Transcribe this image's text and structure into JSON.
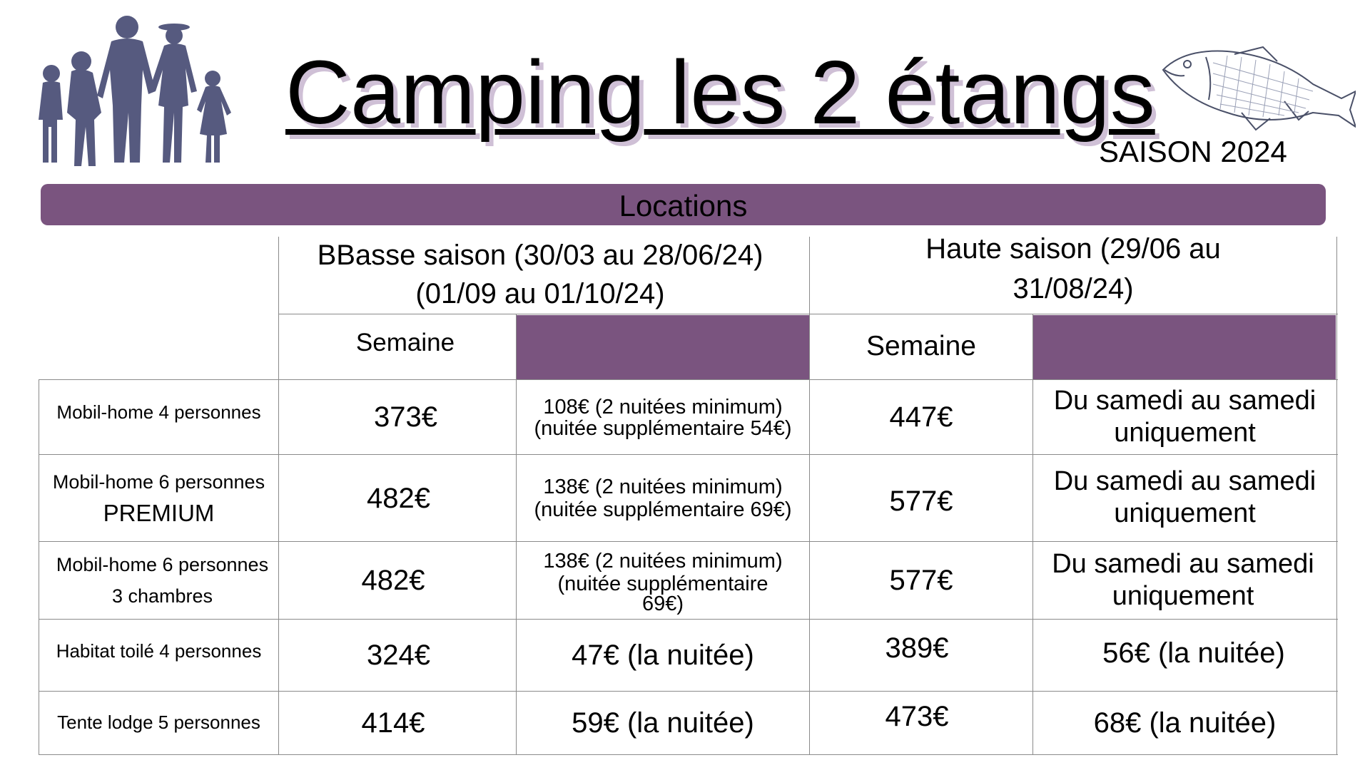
{
  "header": {
    "title": "Camping les 2 étangs",
    "season": "SAISON 2024",
    "family_icon": "family-silhouette-icon",
    "fish_icon": "fish-illustration-icon"
  },
  "band": {
    "label": "Locations"
  },
  "colors": {
    "accent": "#7a547f",
    "shadow": "#cfc0d6",
    "rule": "#8a8a8a"
  },
  "table": {
    "basse": {
      "line1": "BBasse saison (30/03 au 28/06/24)",
      "line2": "(01/09 au 01/10/24)",
      "semaine": "Semaine"
    },
    "haute": {
      "line1": "Haute saison (29/06 au",
      "line2": "31/08/24)",
      "semaine": "Semaine"
    },
    "rows": [
      {
        "label1": "Mobil-home 4 personnes",
        "label2": "",
        "basse_week": "373€",
        "basse_night1": "108€ (2 nuitées minimum)",
        "basse_night2": "(nuitée supplémentaire 54€)",
        "haute_week": "447€",
        "haute_note1": "Du samedi au samedi",
        "haute_note2": "uniquement"
      },
      {
        "label1": "Mobil-home 6 personnes",
        "label2": "PREMIUM",
        "basse_week": "482€",
        "basse_night1": "138€ (2 nuitées minimum)",
        "basse_night2": "(nuitée supplémentaire 69€)",
        "haute_week": "577€",
        "haute_note1": "Du samedi au samedi",
        "haute_note2": "uniquement"
      },
      {
        "label1": "Mobil-home 6 personnes",
        "label2": "3 chambres",
        "basse_week": "482€",
        "basse_night1": "138€ (2 nuitées minimum)",
        "basse_night2": "(nuitée supplémentaire",
        "basse_night3": "69€)",
        "haute_week": "577€",
        "haute_note1": "Du samedi au samedi",
        "haute_note2": "uniquement"
      },
      {
        "label1": "Habitat toilé 4 personnes",
        "basse_week": "324€",
        "basse_night": "47€ (la nuitée)",
        "haute_week": "389€",
        "haute_night": "56€ (la nuitée)"
      },
      {
        "label1": "Tente lodge 5 personnes",
        "basse_week": "414€",
        "basse_night": "59€ (la nuitée)",
        "haute_week": "473€",
        "haute_night": "68€ (la nuitée)"
      }
    ]
  }
}
